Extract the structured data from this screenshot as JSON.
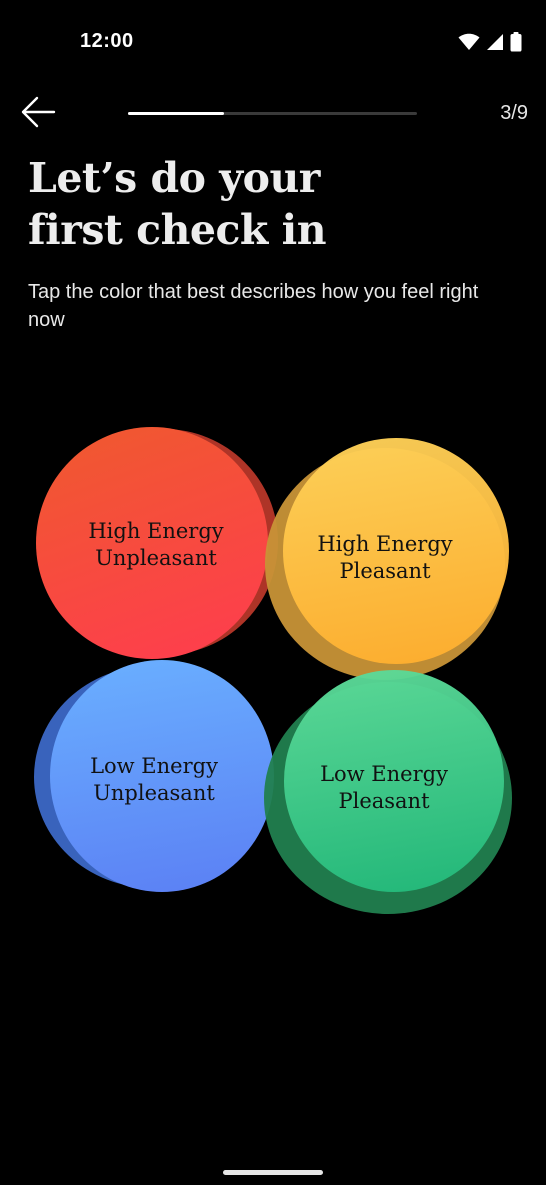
{
  "status_bar": {
    "time": "12:00",
    "icons": [
      "wifi-icon",
      "signal-icon",
      "battery-icon"
    ]
  },
  "header": {
    "back_icon": "arrow-left-icon",
    "progress": {
      "current": 3,
      "total": 9
    },
    "step_label": "3/9"
  },
  "title": {
    "line1": "Let’s do your",
    "line2": "first check in"
  },
  "subtitle": "Tap the color that best describes how you feel right now",
  "moods": [
    {
      "line1": "High Energy",
      "line2": "Unpleasant",
      "color": "#ff3c4f"
    },
    {
      "line1": "High Energy",
      "line2": "Pleasant",
      "color": "#ffc043"
    },
    {
      "line1": "Low Energy",
      "line2": "Unpleasant",
      "color": "#5b8cf7"
    },
    {
      "line1": "Low Energy",
      "line2": "Pleasant",
      "color": "#2fca86"
    }
  ]
}
